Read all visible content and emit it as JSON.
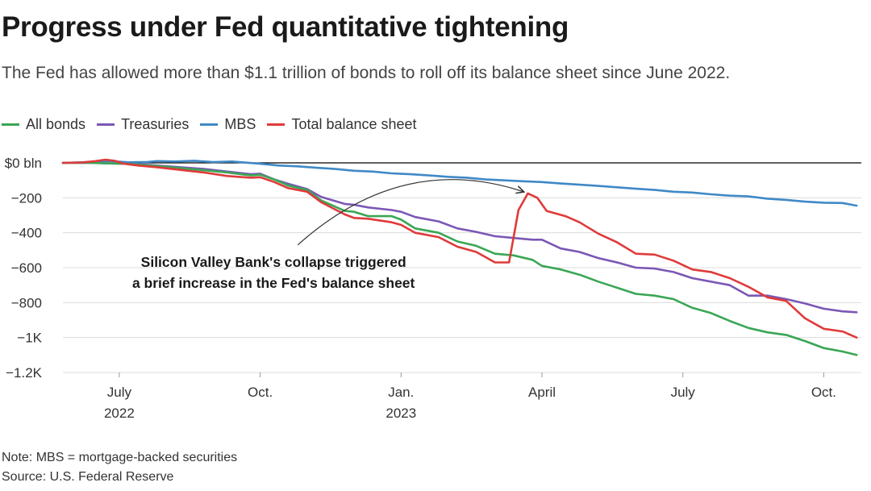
{
  "chart_data": {
    "type": "line",
    "title": "Progress under Fed quantitative tightening",
    "subtitle": "The Fed has allowed more than $1.1 trillion of bonds to roll off its balance sheet since June 2022.",
    "ylabel": "",
    "xlabel": "",
    "ylim": [
      -1200,
      0
    ],
    "xlim": [
      0,
      1.7
    ],
    "y_ticks": [
      {
        "value": 0,
        "label": "$0 bln"
      },
      {
        "value": -200,
        "label": "−200"
      },
      {
        "value": -400,
        "label": "−400"
      },
      {
        "value": -600,
        "label": "−600"
      },
      {
        "value": -800,
        "label": "−800"
      },
      {
        "value": -1000,
        "label": "−1K"
      },
      {
        "value": -1200,
        "label": "−1.2K"
      }
    ],
    "x_ticks": [
      {
        "x": 0.12,
        "month": "July",
        "year": "2022"
      },
      {
        "x": 0.42,
        "month": "Oct.",
        "year": ""
      },
      {
        "x": 0.72,
        "month": "Jan.",
        "year": "2023"
      },
      {
        "x": 1.02,
        "month": "April",
        "year": ""
      },
      {
        "x": 1.32,
        "month": "July",
        "year": ""
      },
      {
        "x": 1.62,
        "month": "Oct.",
        "year": ""
      }
    ],
    "x_units": "months since June 2022 ÷ 10",
    "series": [
      {
        "name": "All bonds",
        "color": "#3aa655",
        "points": [
          [
            0,
            0
          ],
          [
            0.06,
            0
          ],
          [
            0.1,
            -3
          ],
          [
            0.13,
            -5
          ],
          [
            0.16,
            -10
          ],
          [
            0.2,
            -18
          ],
          [
            0.25,
            -30
          ],
          [
            0.3,
            -42
          ],
          [
            0.35,
            -55
          ],
          [
            0.4,
            -72
          ],
          [
            0.42,
            -68
          ],
          [
            0.45,
            -95
          ],
          [
            0.48,
            -130
          ],
          [
            0.52,
            -155
          ],
          [
            0.55,
            -215
          ],
          [
            0.6,
            -275
          ],
          [
            0.62,
            -280
          ],
          [
            0.65,
            -305
          ],
          [
            0.7,
            -305
          ],
          [
            0.72,
            -325
          ],
          [
            0.75,
            -375
          ],
          [
            0.8,
            -400
          ],
          [
            0.84,
            -450
          ],
          [
            0.88,
            -475
          ],
          [
            0.92,
            -520
          ],
          [
            0.96,
            -530
          ],
          [
            1.0,
            -555
          ],
          [
            1.02,
            -590
          ],
          [
            1.06,
            -610
          ],
          [
            1.1,
            -640
          ],
          [
            1.14,
            -680
          ],
          [
            1.18,
            -715
          ],
          [
            1.22,
            -750
          ],
          [
            1.26,
            -760
          ],
          [
            1.3,
            -780
          ],
          [
            1.34,
            -830
          ],
          [
            1.38,
            -860
          ],
          [
            1.42,
            -905
          ],
          [
            1.46,
            -945
          ],
          [
            1.5,
            -970
          ],
          [
            1.54,
            -985
          ],
          [
            1.58,
            -1020
          ],
          [
            1.62,
            -1060
          ],
          [
            1.66,
            -1080
          ],
          [
            1.69,
            -1100
          ]
        ]
      },
      {
        "name": "Treasuries",
        "color": "#7b57b5",
        "points": [
          [
            0,
            0
          ],
          [
            0.06,
            0
          ],
          [
            0.1,
            -3
          ],
          [
            0.13,
            -5
          ],
          [
            0.16,
            -8
          ],
          [
            0.2,
            -15
          ],
          [
            0.25,
            -25
          ],
          [
            0.3,
            -35
          ],
          [
            0.35,
            -50
          ],
          [
            0.4,
            -65
          ],
          [
            0.42,
            -62
          ],
          [
            0.45,
            -95
          ],
          [
            0.48,
            -120
          ],
          [
            0.52,
            -150
          ],
          [
            0.55,
            -195
          ],
          [
            0.6,
            -235
          ],
          [
            0.62,
            -240
          ],
          [
            0.65,
            -255
          ],
          [
            0.7,
            -270
          ],
          [
            0.72,
            -280
          ],
          [
            0.75,
            -310
          ],
          [
            0.8,
            -335
          ],
          [
            0.84,
            -375
          ],
          [
            0.88,
            -395
          ],
          [
            0.92,
            -420
          ],
          [
            0.96,
            -430
          ],
          [
            1.0,
            -440
          ],
          [
            1.02,
            -440
          ],
          [
            1.06,
            -490
          ],
          [
            1.1,
            -510
          ],
          [
            1.14,
            -545
          ],
          [
            1.18,
            -570
          ],
          [
            1.22,
            -600
          ],
          [
            1.26,
            -605
          ],
          [
            1.3,
            -625
          ],
          [
            1.34,
            -660
          ],
          [
            1.38,
            -680
          ],
          [
            1.42,
            -700
          ],
          [
            1.46,
            -760
          ],
          [
            1.5,
            -760
          ],
          [
            1.54,
            -780
          ],
          [
            1.58,
            -805
          ],
          [
            1.62,
            -835
          ],
          [
            1.66,
            -850
          ],
          [
            1.69,
            -855
          ]
        ]
      },
      {
        "name": "MBS",
        "color": "#3f89c6",
        "points": [
          [
            0,
            0
          ],
          [
            0.06,
            5
          ],
          [
            0.1,
            10
          ],
          [
            0.14,
            3
          ],
          [
            0.18,
            5
          ],
          [
            0.2,
            10
          ],
          [
            0.24,
            8
          ],
          [
            0.28,
            12
          ],
          [
            0.32,
            4
          ],
          [
            0.36,
            8
          ],
          [
            0.42,
            -5
          ],
          [
            0.46,
            -15
          ],
          [
            0.5,
            -20
          ],
          [
            0.54,
            -28
          ],
          [
            0.58,
            -35
          ],
          [
            0.62,
            -45
          ],
          [
            0.66,
            -50
          ],
          [
            0.7,
            -60
          ],
          [
            0.74,
            -65
          ],
          [
            0.78,
            -72
          ],
          [
            0.82,
            -80
          ],
          [
            0.86,
            -85
          ],
          [
            0.9,
            -95
          ],
          [
            0.94,
            -100
          ],
          [
            0.98,
            -105
          ],
          [
            1.02,
            -110
          ],
          [
            1.06,
            -118
          ],
          [
            1.1,
            -125
          ],
          [
            1.14,
            -132
          ],
          [
            1.18,
            -140
          ],
          [
            1.22,
            -148
          ],
          [
            1.26,
            -155
          ],
          [
            1.3,
            -165
          ],
          [
            1.34,
            -170
          ],
          [
            1.38,
            -180
          ],
          [
            1.42,
            -188
          ],
          [
            1.46,
            -192
          ],
          [
            1.5,
            -205
          ],
          [
            1.54,
            -212
          ],
          [
            1.58,
            -222
          ],
          [
            1.62,
            -228
          ],
          [
            1.66,
            -230
          ],
          [
            1.69,
            -245
          ]
        ]
      },
      {
        "name": "Total balance sheet",
        "color": "#e03a3a",
        "points": [
          [
            0,
            0
          ],
          [
            0.04,
            2
          ],
          [
            0.07,
            10
          ],
          [
            0.09,
            18
          ],
          [
            0.11,
            12
          ],
          [
            0.13,
            -5
          ],
          [
            0.16,
            -15
          ],
          [
            0.2,
            -25
          ],
          [
            0.25,
            -40
          ],
          [
            0.3,
            -55
          ],
          [
            0.35,
            -75
          ],
          [
            0.4,
            -85
          ],
          [
            0.42,
            -82
          ],
          [
            0.45,
            -110
          ],
          [
            0.48,
            -145
          ],
          [
            0.52,
            -165
          ],
          [
            0.55,
            -225
          ],
          [
            0.6,
            -295
          ],
          [
            0.62,
            -315
          ],
          [
            0.65,
            -320
          ],
          [
            0.7,
            -340
          ],
          [
            0.72,
            -355
          ],
          [
            0.75,
            -400
          ],
          [
            0.8,
            -425
          ],
          [
            0.84,
            -480
          ],
          [
            0.88,
            -510
          ],
          [
            0.92,
            -570
          ],
          [
            0.95,
            -570
          ],
          [
            0.97,
            -270
          ],
          [
            0.99,
            -175
          ],
          [
            1.01,
            -200
          ],
          [
            1.03,
            -275
          ],
          [
            1.07,
            -305
          ],
          [
            1.1,
            -340
          ],
          [
            1.14,
            -405
          ],
          [
            1.18,
            -455
          ],
          [
            1.22,
            -520
          ],
          [
            1.26,
            -525
          ],
          [
            1.3,
            -560
          ],
          [
            1.34,
            -610
          ],
          [
            1.38,
            -625
          ],
          [
            1.42,
            -660
          ],
          [
            1.46,
            -710
          ],
          [
            1.5,
            -770
          ],
          [
            1.54,
            -790
          ],
          [
            1.58,
            -890
          ],
          [
            1.62,
            -950
          ],
          [
            1.66,
            -965
          ],
          [
            1.69,
            -1000
          ]
        ]
      }
    ],
    "annotations": [
      {
        "text_line1": "Silicon Valley Bank's collapse triggered",
        "text_line2": "a brief increase in the Fed's balance sheet",
        "arrow_from": [
          0.5,
          -470
        ],
        "arrow_to": [
          0.98,
          -165
        ]
      }
    ],
    "legend_position": "top-left",
    "zero_line": true
  },
  "footer": {
    "note": "Note: MBS = mortgage-backed securities",
    "source": "Source: U.S. Federal Reserve"
  }
}
